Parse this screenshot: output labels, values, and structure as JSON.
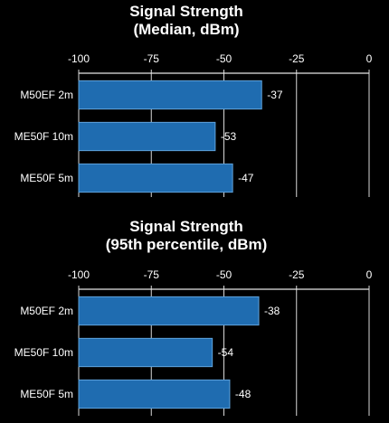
{
  "chart_data": [
    {
      "type": "bar",
      "orientation": "horizontal",
      "title": "Signal Strength",
      "subtitle": "(Median, dBm)",
      "categories": [
        "M50EF 2m",
        "ME50F 10m",
        "ME50F 5m"
      ],
      "values": [
        -37,
        -53,
        -47
      ],
      "data_labels": [
        "-37",
        "-53",
        "-47"
      ],
      "xlim": [
        -100,
        0
      ],
      "xticks": [
        -100,
        -75,
        -50,
        -25,
        0
      ],
      "xtick_labels": [
        "-100",
        "-75",
        "-50",
        "-25",
        "0"
      ],
      "axis_position": "top",
      "grid": true,
      "bar_color": "#1f6cb0",
      "xlabel": "",
      "ylabel": ""
    },
    {
      "type": "bar",
      "orientation": "horizontal",
      "title": "Signal Strength",
      "subtitle": "(95th percentile, dBm)",
      "categories": [
        "M50EF 2m",
        "ME50F 10m",
        "ME50F 5m"
      ],
      "values": [
        -38,
        -54,
        -48
      ],
      "data_labels": [
        "-38",
        "-54",
        "-48"
      ],
      "xlim": [
        -100,
        0
      ],
      "xticks": [
        -100,
        -75,
        -50,
        -25,
        0
      ],
      "xtick_labels": [
        "-100",
        "-75",
        "-50",
        "-25",
        "0"
      ],
      "axis_position": "top",
      "grid": true,
      "bar_color": "#1f6cb0",
      "xlabel": "",
      "ylabel": ""
    }
  ]
}
